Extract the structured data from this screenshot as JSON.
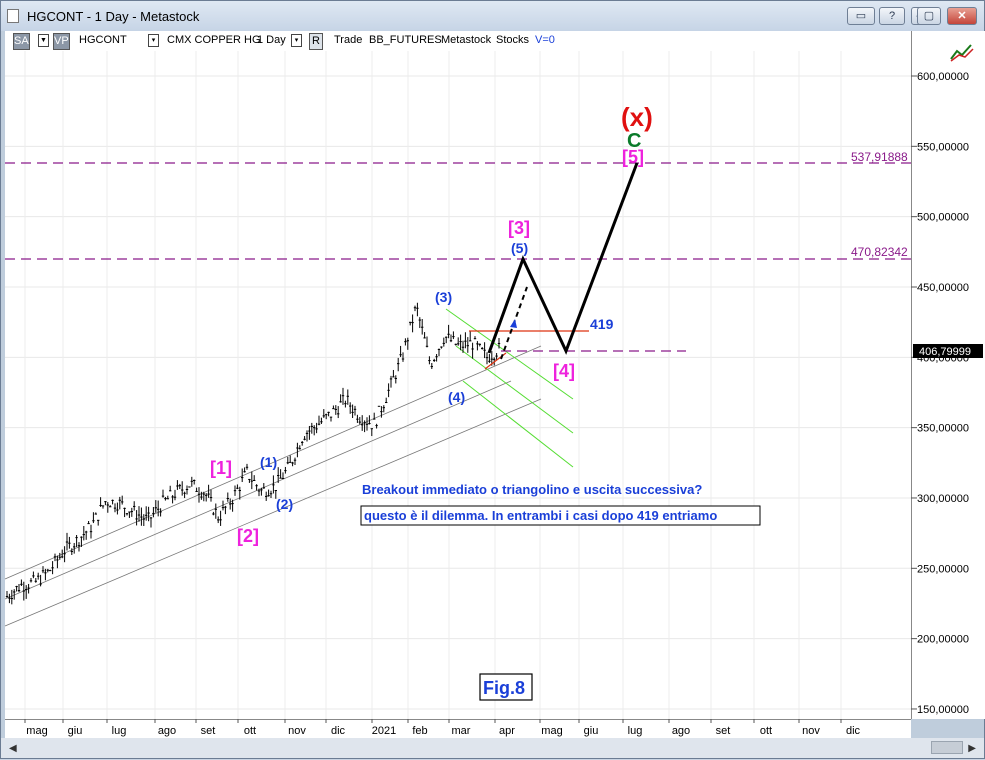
{
  "window": {
    "title": "HGCONT - 1 Day - Metastock"
  },
  "toolbar": {
    "sa": "SA",
    "vp": "VP",
    "symbol": "HGCONT",
    "name": "CMX COPPER HG",
    "period": "1 Day",
    "r_btn": "R",
    "trade": "Trade",
    "exchange": "BB_FUTURES",
    "source": "Metastock",
    "type": "Stocks",
    "volume": "V=0"
  },
  "annotations": {
    "x_label": "(x)",
    "c_label": "C",
    "w1": "[1]",
    "w2": "[2]",
    "w3": "[3]",
    "w4": "[4]",
    "w5": "[5]",
    "s1": "(1)",
    "s2": "(2)",
    "s3": "(3)",
    "s4": "(4)",
    "s5": "(5)",
    "level_419": "419",
    "line1": "Breakout immediato o triangolino e uscita successiva?",
    "line2": "questo è il dilemma. In entrambi i casi dopo 419 entriamo",
    "fig": "Fig.8",
    "hline_hi": "537,91888",
    "hline_mid": "470,82342",
    "current_price": "406,79999"
  },
  "colors": {
    "magenta": "#ee22dd",
    "blue": "#1a3fd8",
    "red": "#e01010",
    "green": "#0a7a2a",
    "purple_dash": "#8a1a8a",
    "green_channel": "#55dd33",
    "red_triangle": "#dd3311"
  },
  "chart_data": {
    "type": "candlestick",
    "instrument": "CMX COPPER HG",
    "period": "1 Day",
    "y_ticks": [
      "600,00000",
      "550,00000",
      "500,00000",
      "450,00000",
      "400,00000",
      "350,00000",
      "300,00000",
      "250,00000",
      "200,00000",
      "150,00000"
    ],
    "x_ticks": [
      "mag",
      "giu",
      "lug",
      "ago",
      "set",
      "ott",
      "nov",
      "dic",
      "2021",
      "feb",
      "mar",
      "apr",
      "mag",
      "giu",
      "lug",
      "ago",
      "set",
      "ott",
      "nov",
      "dic"
    ],
    "ylim": [
      150,
      630
    ],
    "horizontal_levels": [
      537.91888,
      470.82342,
      406.79999,
      419
    ],
    "price_path": [
      [
        0,
        230
      ],
      [
        1,
        238
      ],
      [
        2,
        240
      ],
      [
        3,
        248
      ],
      [
        4,
        262
      ],
      [
        5,
        270
      ],
      [
        6,
        280
      ],
      [
        7,
        298
      ],
      [
        8,
        296
      ],
      [
        9,
        290
      ],
      [
        10,
        284
      ],
      [
        11,
        296
      ],
      [
        12,
        304
      ],
      [
        13,
        310
      ],
      [
        14,
        304
      ],
      [
        15,
        286
      ],
      [
        16,
        300
      ],
      [
        17,
        318
      ],
      [
        18,
        305
      ],
      [
        19,
        308
      ],
      [
        20,
        322
      ],
      [
        21,
        345
      ],
      [
        22,
        352
      ],
      [
        23,
        360
      ],
      [
        24,
        370
      ],
      [
        25,
        358
      ],
      [
        26,
        352
      ],
      [
        27,
        375
      ],
      [
        28,
        400
      ],
      [
        29,
        436
      ],
      [
        30,
        395
      ],
      [
        31,
        415
      ],
      [
        32,
        408
      ],
      [
        33,
        410
      ],
      [
        34,
        400
      ],
      [
        35,
        406.8
      ]
    ],
    "projection": [
      [
        35,
        406.8
      ],
      [
        37,
        470.8
      ],
      [
        41,
        405
      ],
      [
        45,
        537.9
      ]
    ]
  }
}
